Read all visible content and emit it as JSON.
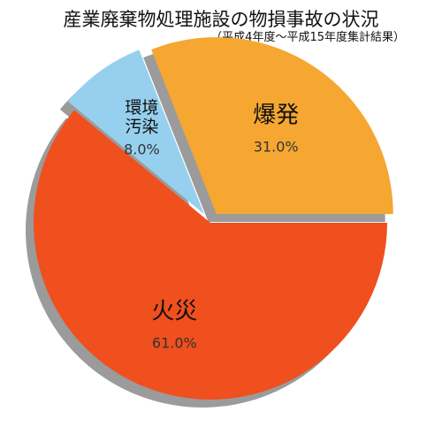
{
  "chart_data": {
    "type": "pie",
    "title": "産業廃棄物処理施設の物損事故の状況",
    "subtitle": "（平成4年度〜平成15年度集計結果）",
    "slices": [
      {
        "label": "爆発",
        "lines": [
          "爆発"
        ],
        "value": 31.0,
        "value_label": "31.0%",
        "color": "#f5a732",
        "exploded": true
      },
      {
        "label": "環境汚染",
        "lines": [
          "環境",
          "汚染"
        ],
        "value": 8.0,
        "value_label": "8.0%",
        "color": "#97d0ee",
        "exploded": true
      },
      {
        "label": "火災",
        "lines": [
          "火災"
        ],
        "value": 61.0,
        "value_label": "61.0%",
        "color": "#f04f1e",
        "exploded": false
      }
    ],
    "shadow": true,
    "legend": "none"
  }
}
